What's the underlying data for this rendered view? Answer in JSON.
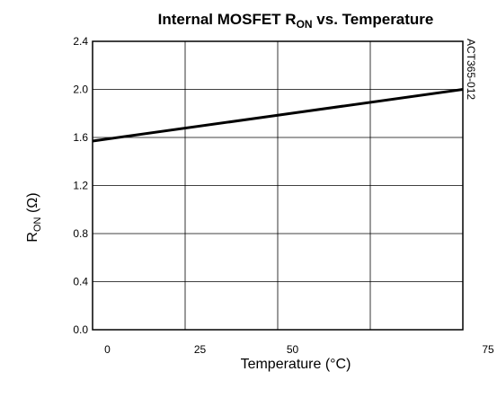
{
  "chart_data": {
    "type": "line",
    "title": {
      "prefix": "Internal MOSFET R",
      "subscript": "ON",
      "suffix": " vs. Temperature"
    },
    "xlabel": "Temperature (°C)",
    "ylabel": {
      "prefix": "R",
      "subscript": "ON",
      "suffix": " (Ω)"
    },
    "side_label": "ACT365-012",
    "x_ticks": [
      "0",
      "25",
      "50",
      "75"
    ],
    "y_ticks": [
      "0.0",
      "0.4",
      "0.8",
      "1.2",
      "1.6",
      "2.0",
      "2.4"
    ],
    "xlim": [
      -5,
      70
    ],
    "ylim": [
      0,
      2.4
    ],
    "grid": true,
    "series": [
      {
        "x": [
          -5,
          70
        ],
        "y": [
          1.57,
          2.0
        ]
      }
    ]
  }
}
